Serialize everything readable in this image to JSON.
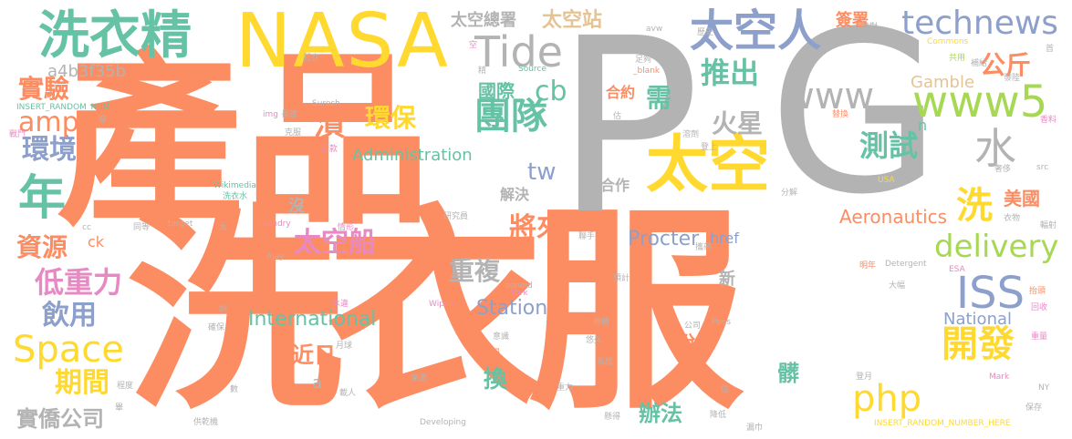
{
  "colors": {
    "orange": "#FC8D62",
    "yellow": "#FFD92F",
    "gray": "#B3B3B3",
    "teal": "#66C2A5",
    "blue": "#8DA0CB",
    "green": "#A6D854",
    "pink": "#E78AC3",
    "tan": "#E5C494"
  },
  "words": {
    "w01": "產品",
    "w02": "洗衣服",
    "w03": "P",
    "w04": "G",
    "w05": "NASA",
    "w06": "洗衣精",
    "w07": "太空",
    "w08": "太空人",
    "w09": "technews",
    "w10": "Tide",
    "w11": "www5",
    "w12": "www",
    "w13": "團隊",
    "w14": "水",
    "w15": "Space",
    "w16": "ISS",
    "w17": "delivery",
    "w18": "年",
    "w19": "開發",
    "w20": "php",
    "w21": "環境",
    "w22": "實驗",
    "w23": "amp",
    "w24": "太空船",
    "w25": "低重力",
    "w26": "飲用",
    "w27": "期間",
    "w28": "將來",
    "w29": "重複",
    "w30": "測試",
    "w31": "公斤",
    "w32": "太空站",
    "w33": "太空總署",
    "w34": "國際",
    "w35": "cb",
    "w36": "推出",
    "w37": "火星",
    "w38": "環保",
    "w39": "需",
    "w40": "資源",
    "w41": "洗",
    "w42": "漬",
    "w43": "tw",
    "w44": "International",
    "w45": "Station",
    "w46": "Procter",
    "w47": "Gamble",
    "w48": "Administration",
    "w49": "Aeronautics",
    "w50": "National",
    "w51": "美國",
    "w52": "辦法",
    "w53": "換",
    "w54": "髒",
    "w55": "脫掉",
    "w56": "實僑公司",
    "w57": "近日",
    "w58": "a4b3f35b",
    "w59": "簽署",
    "w60": "合約",
    "w61": "解決",
    "w62": "合作",
    "w63": "href",
    "w64": "新",
    "w65": "沒",
    "w66": "ck",
    "w67": "a",
    "w68": "n",
    "w69": "INSERT_RANDOM_NUMBER_HERE",
    "w70": "INSERT_RANDOM_NUM",
    "w71": "Commons",
    "w72": "Wikimedia",
    "w73": "Source",
    "w74": "_blank",
    "w75": "Suresh",
    "w76": "img",
    "w77": "Laundry",
    "w78": "Ajay",
    "w79": "target",
    "w80": "zoneid",
    "w81": "York",
    "w82": "Wipes",
    "w83": "Developing",
    "w84": "Detergent",
    "w85": "Pens",
    "w86": "Mark",
    "w87": "ESA",
    "w88": "NY",
    "w89": "USA",
    "w90": "src",
    "w91": "cc",
    "w92": "avw",
    "w93": "歷史",
    "w94": "污染",
    "w95": "精對",
    "w96": "首",
    "w97": "補給",
    "w98": "發陸",
    "w99": "共用",
    "w100": "替換",
    "w101": "奢侈",
    "w102": "衣物",
    "w103": "輻射",
    "w104": "分解",
    "w105": "登上",
    "w106": "溶劑",
    "w107": "足夠",
    "w108": "洗衣水",
    "w109": "研究員",
    "w110": "情形",
    "w111": "聯手",
    "w112": "攜帶",
    "w113": "大幅",
    "w114": "明年",
    "w115": "預計",
    "w116": "商機",
    "w117": "悠久",
    "w118": "系統",
    "w119": "重力",
    "w120": "意識",
    "w121": "來源",
    "w122": "載人",
    "w123": "供乾機",
    "w124": "水違",
    "w125": "確保",
    "w126": "月球",
    "w127": "市場",
    "w128": "降低",
    "w129": "漏巾",
    "w130": "公司",
    "w131": "保存",
    "w132": "回收",
    "w133": "重量",
    "w134": "抬頭",
    "w135": "登月",
    "w136": "香料",
    "w137": "穿",
    "w138": "戰鬥",
    "w139": "起衣",
    "w140": "長達",
    "w141": "克服",
    "w142": "新款",
    "w143": "更",
    "w144": "同等",
    "w145": "太",
    "w146": "程度",
    "w147": "數",
    "w148": "說",
    "w149": "位",
    "w150": "懸得",
    "w151": "空",
    "w152": "精",
    "w153": "估",
    "w154": "畢"
  }
}
